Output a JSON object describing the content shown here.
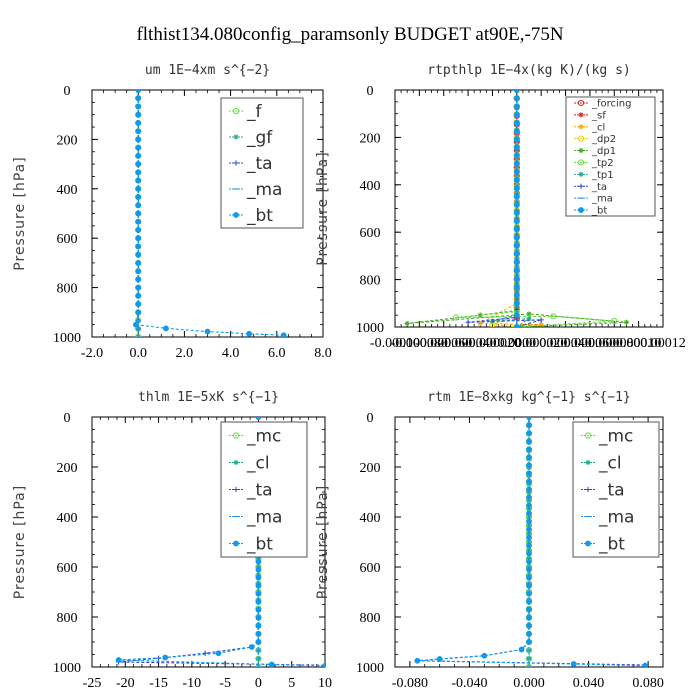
{
  "figure": {
    "title": "flthist134.080config_paramsonly  BUDGET at90E,-75N"
  },
  "chart_data": [
    {
      "type": "line",
      "title": "um   1E−4xm s^{−2}",
      "ylabel": "Pressure [hPa]",
      "xlim": [
        -2.0,
        8.0
      ],
      "ylim": [
        1000,
        0
      ],
      "x_ticks": [
        "-2.0",
        "0.0",
        "2.0",
        "4.0",
        "6.0",
        "8.0"
      ],
      "y_ticks": [
        "0",
        "200",
        "400",
        "600",
        "800",
        "1000"
      ],
      "legend": "top-right",
      "series": [
        {
          "name": "_f",
          "color": "#66dd44",
          "marker": "o",
          "x": [
            0,
            0,
            0,
            0,
            0
          ],
          "y": [
            0,
            300,
            600,
            900,
            1000
          ]
        },
        {
          "name": "_gf",
          "color": "#22aa88",
          "marker": "*",
          "x": [
            0,
            0,
            0,
            0,
            0
          ],
          "y": [
            0,
            300,
            600,
            900,
            1000
          ]
        },
        {
          "name": "_ta",
          "color": "#3344cc",
          "marker": "+",
          "x": [
            0,
            0,
            0,
            0,
            0
          ],
          "y": [
            0,
            300,
            600,
            900,
            1000
          ]
        },
        {
          "name": "_ma",
          "color": "#3399dd",
          "marker": "-",
          "x": [
            0,
            0,
            0,
            0,
            0
          ],
          "y": [
            0,
            300,
            600,
            900,
            1000
          ]
        },
        {
          "name": "_bt",
          "color": "#1199ee",
          "marker": "dot",
          "x": [
            0,
            0,
            0,
            -0.1,
            1.2,
            3.0,
            4.8,
            6.3
          ],
          "y": [
            0,
            500,
            900,
            950,
            965,
            978,
            987,
            993
          ]
        }
      ]
    },
    {
      "type": "line",
      "title": "rtpthlp   1E−4x(kg K)/(kg s)",
      "ylabel": "Pressure [hPa]",
      "xlim": [
        -0.0001,
        0.00012
      ],
      "ylim": [
        1000,
        0
      ],
      "x_ticks": [
        "-0.00010",
        "-0.000080",
        "-0.000060",
        "-0.000040",
        "-0.000020",
        "0.0000",
        "0.000020",
        "0.000040",
        "0.000060",
        "0.000080",
        "0.00010",
        "0.00012"
      ],
      "y_ticks": [
        "0",
        "200",
        "400",
        "600",
        "800",
        "1000"
      ],
      "legend": "top-right",
      "series": [
        {
          "name": "_forcing",
          "color": "#dd2222",
          "marker": "o",
          "x": [
            0,
            0,
            0,
            0
          ],
          "y": [
            0,
            400,
            800,
            1000
          ]
        },
        {
          "name": "_sf",
          "color": "#dd2222",
          "marker": "*",
          "x": [
            0,
            0,
            0,
            0
          ],
          "y": [
            0,
            400,
            800,
            1000
          ]
        },
        {
          "name": "_cl",
          "color": "#ffaa00",
          "marker": "*",
          "x": [
            0,
            0,
            -3e-05,
            2e-05,
            0
          ],
          "y": [
            0,
            900,
            985,
            990,
            1000
          ]
        },
        {
          "name": "_dp2",
          "color": "#eecc00",
          "marker": "o",
          "x": [
            0,
            0,
            -2e-05,
            0
          ],
          "y": [
            0,
            950,
            990,
            1000
          ]
        },
        {
          "name": "_dp1",
          "color": "#44aa22",
          "marker": "*",
          "x": [
            0,
            0,
            -3e-05,
            -9e-05,
            1e-05,
            9e-05,
            0
          ],
          "y": [
            0,
            930,
            950,
            985,
            945,
            980,
            1000
          ]
        },
        {
          "name": "_tp2",
          "color": "#66dd44",
          "marker": "o",
          "x": [
            0,
            0,
            -5e-05,
            3e-05,
            8e-05,
            0
          ],
          "y": [
            0,
            935,
            960,
            955,
            975,
            1000
          ]
        },
        {
          "name": "_tp1",
          "color": "#22aa88",
          "marker": "*",
          "x": [
            0,
            0,
            -2e-05,
            1e-05,
            0
          ],
          "y": [
            0,
            950,
            975,
            965,
            1000
          ]
        },
        {
          "name": "_ta",
          "color": "#3344cc",
          "marker": "+",
          "x": [
            0,
            0,
            -4e-05,
            2e-05,
            0
          ],
          "y": [
            0,
            960,
            980,
            970,
            1000
          ]
        },
        {
          "name": "_ma",
          "color": "#3399dd",
          "marker": "-",
          "x": [
            0,
            0,
            0
          ],
          "y": [
            0,
            900,
            1000
          ]
        },
        {
          "name": "_bt",
          "color": "#1199ee",
          "marker": "dot",
          "x": [
            0,
            0,
            0
          ],
          "y": [
            0,
            900,
            1000
          ]
        }
      ]
    },
    {
      "type": "line",
      "title": "thlm   1E−5xK s^{−1}",
      "ylabel": "Pressure [hPa]",
      "xlim": [
        -25,
        10
      ],
      "ylim": [
        1000,
        0
      ],
      "x_ticks": [
        "-25",
        "-20",
        "-15",
        "-10",
        "-5",
        "0",
        "5",
        "10"
      ],
      "y_ticks": [
        "0",
        "200",
        "400",
        "600",
        "800",
        "1000"
      ],
      "legend": "top-right",
      "series": [
        {
          "name": "_mc",
          "color": "#66dd44",
          "marker": "o",
          "x": [
            0,
            0,
            0,
            0
          ],
          "y": [
            0,
            400,
            800,
            1000
          ]
        },
        {
          "name": "_cl",
          "color": "#22aa88",
          "marker": "*",
          "x": [
            0,
            0,
            0,
            0
          ],
          "y": [
            0,
            400,
            800,
            1000
          ]
        },
        {
          "name": "_ta",
          "color": "#3344cc",
          "marker": "+",
          "x": [
            0,
            0,
            -1,
            -8,
            -15,
            -21,
            10
          ],
          "y": [
            0,
            900,
            920,
            945,
            965,
            980,
            993
          ]
        },
        {
          "name": "_ma",
          "color": "#3399dd",
          "marker": "-",
          "x": [
            0,
            0,
            0
          ],
          "y": [
            0,
            900,
            1000
          ]
        },
        {
          "name": "_bt",
          "color": "#1199ee",
          "marker": "dot",
          "x": [
            0,
            0,
            -1,
            -6,
            -14,
            -21,
            2,
            10
          ],
          "y": [
            0,
            900,
            920,
            945,
            962,
            972,
            990,
            995
          ]
        }
      ]
    },
    {
      "type": "line",
      "title": "rtm   1E−8xkg kg^{−1} s^{−1}",
      "ylabel": "Pressure [hPa]",
      "xlim": [
        -0.09,
        0.09
      ],
      "ylim": [
        1000,
        0
      ],
      "x_ticks": [
        "-0.080",
        "-0.040",
        "0.000",
        "0.040",
        "0.080"
      ],
      "y_ticks": [
        "0",
        "200",
        "400",
        "600",
        "800",
        "1000"
      ],
      "legend": "top-right",
      "series": [
        {
          "name": "_mc",
          "color": "#66dd44",
          "marker": "o",
          "x": [
            0,
            0,
            0,
            0
          ],
          "y": [
            0,
            400,
            800,
            1000
          ]
        },
        {
          "name": "_cl",
          "color": "#22aa88",
          "marker": "*",
          "x": [
            0,
            0,
            0,
            0
          ],
          "y": [
            0,
            400,
            800,
            1000
          ]
        },
        {
          "name": "_ta",
          "color": "#3344cc",
          "marker": "+",
          "x": [
            0,
            0,
            -0.005,
            -0.03,
            -0.06,
            -0.075,
            0.078
          ],
          "y": [
            0,
            900,
            930,
            955,
            968,
            975,
            992
          ]
        },
        {
          "name": "_ma",
          "color": "#3399dd",
          "marker": "-",
          "x": [
            0,
            0,
            0
          ],
          "y": [
            0,
            900,
            1000
          ]
        },
        {
          "name": "_bt",
          "color": "#1199ee",
          "marker": "dot",
          "x": [
            0,
            0,
            -0.005,
            -0.03,
            -0.06,
            -0.075,
            0.03,
            0.078
          ],
          "y": [
            0,
            900,
            930,
            955,
            968,
            975,
            988,
            995
          ]
        }
      ]
    }
  ]
}
